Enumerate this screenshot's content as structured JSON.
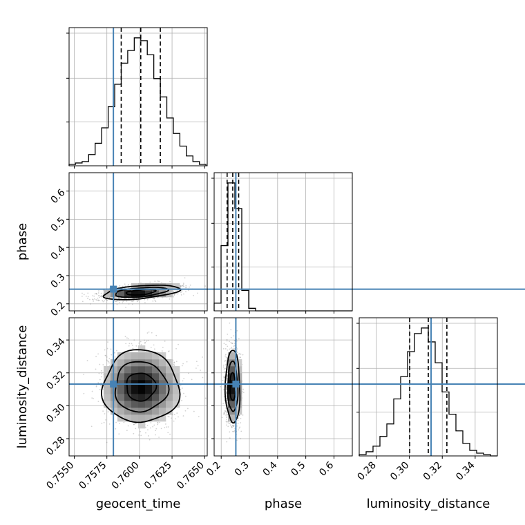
{
  "colors": {
    "truth": "#4682b4",
    "line": "#000000",
    "grid": "#b0b0b0",
    "scatter": "#7f7f7f"
  },
  "chart_data": {
    "type": "corner",
    "parameters": [
      "geocent_time",
      "phase",
      "luminosity_distance"
    ],
    "truths": {
      "geocent_time": 0.758,
      "phase": 0.252,
      "luminosity_distance": 0.3132
    },
    "ranges": {
      "geocent_time": [
        0.7546,
        0.7652
      ],
      "phase": [
        0.175,
        0.665
      ],
      "luminosity_distance": [
        0.2695,
        0.3535
      ]
    },
    "ticks": {
      "geocent_time": [
        0.755,
        0.7575,
        0.76,
        0.7625,
        0.765
      ],
      "phase": [
        0.2,
        0.3,
        0.4,
        0.5,
        0.6
      ],
      "luminosity_distance": [
        0.28,
        0.3,
        0.32,
        0.34
      ]
    },
    "tick_labels": {
      "geocent_time": [
        "0.7550",
        "0.7575",
        "0.7600",
        "0.7625",
        "0.7650"
      ],
      "phase": [
        "0.2",
        "0.3",
        "0.4",
        "0.5",
        "0.6"
      ],
      "luminosity_distance": [
        "0.28",
        "0.30",
        "0.32",
        "0.34"
      ]
    },
    "diag_tick_labels": {
      "geocent_time": [
        "0.7550",
        "0.7575",
        "0.7600",
        "0.7625",
        "0.7650"
      ],
      "phase": [
        "0.2",
        "0.3",
        "0.4",
        "0.5",
        "0.6"
      ],
      "luminosity_distance": [
        "0.28",
        "0.30",
        "0.32",
        "0.34"
      ]
    },
    "quantiles": {
      "geocent_time": [
        0.7586,
        0.7601,
        0.7616
      ],
      "phase": [
        0.221,
        0.241,
        0.262
      ],
      "luminosity_distance": [
        0.3002,
        0.3115,
        0.3228
      ]
    },
    "histograms": {
      "geocent_time": {
        "edges_start": 0.7546,
        "bin_width": 0.0005,
        "counts": [
          1,
          2,
          3,
          8,
          16,
          27,
          42,
          58,
          73,
          82,
          91,
          89,
          79,
          62,
          49,
          34,
          23,
          14,
          7,
          3,
          1
        ]
      },
      "phase": {
        "edges_start": 0.175,
        "bin_width": 0.0245,
        "counts": [
          6,
          51,
          100,
          80,
          16,
          2,
          0,
          0,
          0,
          0,
          0,
          0,
          0,
          0,
          0,
          0,
          0,
          0,
          0,
          0
        ]
      },
      "luminosity_distance": {
        "edges_start": 0.2695,
        "bin_width": 0.0042,
        "counts": [
          1,
          3,
          7,
          14,
          23,
          41,
          57,
          75,
          88,
          92,
          82,
          67,
          46,
          30,
          18,
          9,
          4,
          2,
          1,
          0
        ]
      }
    },
    "pairs": [
      {
        "x": "geocent_time",
        "y": "phase",
        "center": [
          0.7601,
          0.241
        ],
        "sigma": [
          0.0015,
          0.0132
        ],
        "rho": 0.45
      },
      {
        "x": "geocent_time",
        "y": "luminosity_distance",
        "center": [
          0.7601,
          0.3115
        ],
        "sigma": [
          0.0015,
          0.0113
        ],
        "rho": 0.0
      },
      {
        "x": "phase",
        "y": "luminosity_distance",
        "center": [
          0.241,
          0.3115
        ],
        "sigma": [
          0.0132,
          0.0113
        ],
        "rho": -0.05
      }
    ],
    "xlabels": {
      "geocent_time": "geocent_time",
      "phase": "phase",
      "luminosity_distance": "luminosity_distance"
    },
    "ylabels": {
      "phase": "phase",
      "luminosity_distance": "luminosity_distance"
    },
    "grid": true
  }
}
